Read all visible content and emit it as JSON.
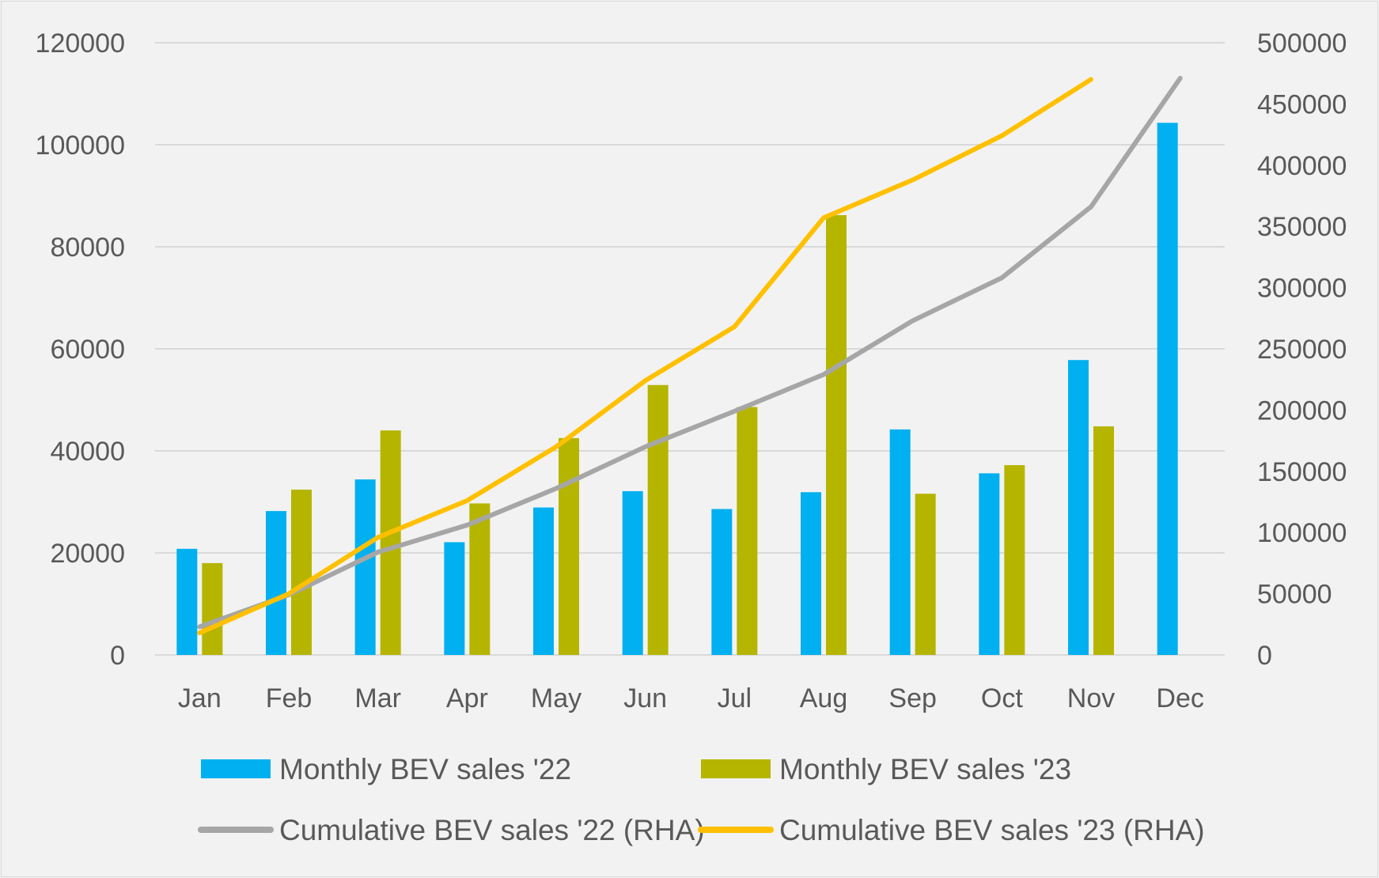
{
  "chart_data": {
    "type": "bar",
    "categories": [
      "Jan",
      "Feb",
      "Mar",
      "Apr",
      "May",
      "Jun",
      "Jul",
      "Aug",
      "Sep",
      "Oct",
      "Nov",
      "Dec"
    ],
    "series": [
      {
        "name": "Monthly BEV sales '22",
        "type": "bar",
        "axis": "left",
        "color": "#00b0f0",
        "values": [
          20800,
          28200,
          34400,
          22100,
          28900,
          32100,
          28600,
          31900,
          44200,
          35600,
          57800,
          104300
        ]
      },
      {
        "name": "Monthly BEV sales '23",
        "type": "bar",
        "axis": "left",
        "color": "#b5b500",
        "values": [
          18000,
          32400,
          44000,
          29700,
          42500,
          52900,
          48600,
          86200,
          31600,
          37200,
          44800,
          null
        ]
      },
      {
        "name": "Cumulative BEV sales '22 (RHA)",
        "type": "line",
        "axis": "right",
        "color": "#a6a6a6",
        "values": [
          23000,
          49000,
          84000,
          106000,
          136000,
          170000,
          199000,
          229000,
          273000,
          308000,
          366000,
          471000
        ]
      },
      {
        "name": "Cumulative BEV sales '23 (RHA)",
        "type": "line",
        "axis": "right",
        "color": "#ffc000",
        "values": [
          18000,
          50000,
          96000,
          126000,
          170000,
          224000,
          268000,
          357000,
          388000,
          424000,
          470000,
          null
        ]
      }
    ],
    "y_left": {
      "ylim": [
        0,
        120000
      ],
      "ticks": [
        "0",
        "20000",
        "40000",
        "60000",
        "80000",
        "100000",
        "120000"
      ]
    },
    "y_right": {
      "ylim": [
        0,
        500000
      ],
      "ticks": [
        "0",
        "50000",
        "100000",
        "150000",
        "200000",
        "250000",
        "300000",
        "350000",
        "400000",
        "450000",
        "500000"
      ]
    },
    "grid": true,
    "legend_position": "bottom"
  }
}
